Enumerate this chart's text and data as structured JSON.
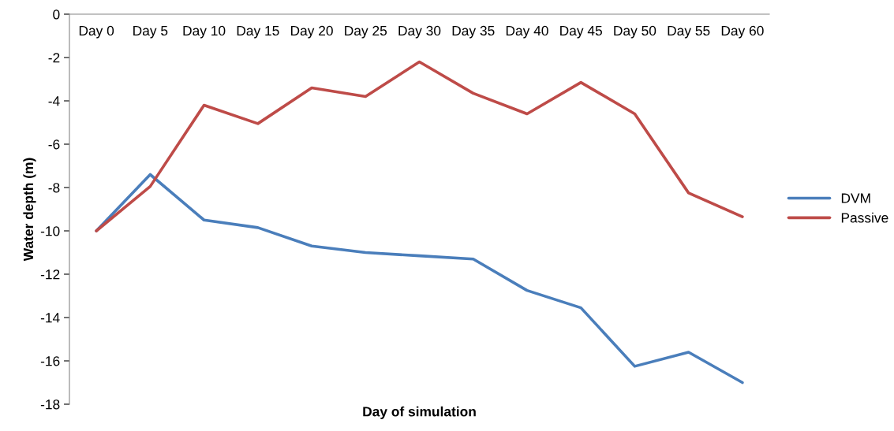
{
  "chart_data": {
    "type": "line",
    "xlabel": "Day of simulation",
    "ylabel": "Water depth (m)",
    "categories": [
      "Day 0",
      "Day 5",
      "Day 10",
      "Day 15",
      "Day 20",
      "Day 25",
      "Day 30",
      "Day 35",
      "Day 40",
      "Day 45",
      "Day 50",
      "Day 55",
      "Day 60"
    ],
    "series": [
      {
        "name": "DVM",
        "color": "#4a7ebb",
        "values": [
          -10,
          -7.4,
          -9.5,
          -9.85,
          -10.7,
          -11.0,
          -11.15,
          -11.3,
          -12.75,
          -13.55,
          -16.25,
          -15.6,
          -17.0
        ]
      },
      {
        "name": "Passive",
        "color": "#be4b48",
        "values": [
          -10,
          -7.95,
          -4.2,
          -5.05,
          -3.4,
          -3.8,
          -2.2,
          -3.65,
          -4.6,
          -3.15,
          -4.6,
          -8.25,
          -9.35
        ]
      }
    ],
    "ylim": [
      -18,
      0
    ],
    "yticks": [
      {
        "value": -18,
        "label": "-18"
      },
      {
        "value": -16,
        "label": "-16"
      },
      {
        "value": -14,
        "label": "-14"
      },
      {
        "value": -12,
        "label": "-12"
      },
      {
        "value": -10,
        "label": "-10"
      },
      {
        "value": -8,
        "label": "-8"
      },
      {
        "value": -6,
        "label": "-6"
      },
      {
        "value": -4,
        "label": "-4"
      },
      {
        "value": -2,
        "label": "-2"
      },
      0
    ],
    "grid": false,
    "legend": "right",
    "marker": "none",
    "line_style": "solid"
  }
}
